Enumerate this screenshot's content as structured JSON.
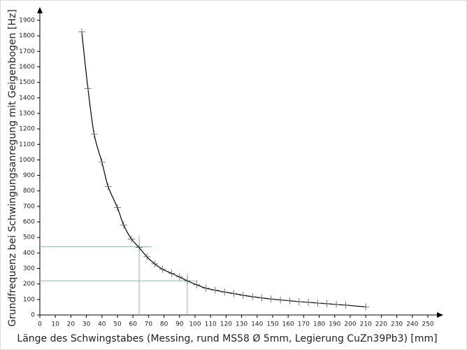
{
  "chart_data": {
    "type": "line",
    "xlabel": "Länge des Schwingstabes (Messing, rund MS58 Ø 5mm, Legierung CuZn39Pb3) [mm]",
    "ylabel": "Grundfrequenz bei Schwingungsanregung mit Geigenbogen [Hz]",
    "x": [
      27,
      31,
      35,
      40,
      44,
      50,
      54,
      59,
      64,
      69,
      74,
      79,
      85,
      90,
      95,
      101,
      107,
      113,
      119,
      125,
      131,
      137,
      143,
      149,
      155,
      161,
      167,
      173,
      179,
      185,
      191,
      197,
      210
    ],
    "values": [
      1825,
      1460,
      1165,
      985,
      828,
      692,
      580,
      490,
      435,
      375,
      330,
      295,
      268,
      245,
      220,
      195,
      173,
      160,
      148,
      138,
      127,
      118,
      110,
      103,
      97,
      92,
      86,
      82,
      77,
      73,
      68,
      64,
      52
    ],
    "color": "#000000",
    "marker": "cross",
    "guides": [
      {
        "x": [
          0,
          72
        ],
        "y": [
          440,
          440
        ]
      },
      {
        "x": [
          64,
          64
        ],
        "y": [
          0,
          515
        ]
      },
      {
        "x": [
          0,
          102
        ],
        "y": [
          220,
          220
        ]
      },
      {
        "x": [
          95,
          95
        ],
        "y": [
          0,
          270
        ]
      }
    ],
    "guide_color": "#8fb8a0",
    "xlim": [
      0,
      250
    ],
    "ylim": [
      0,
      1900
    ],
    "xticks": [
      0,
      10,
      20,
      30,
      40,
      50,
      60,
      70,
      80,
      90,
      100,
      110,
      120,
      130,
      140,
      150,
      160,
      170,
      180,
      190,
      200,
      210,
      220,
      230,
      240,
      250
    ],
    "yticks": [
      0,
      100,
      200,
      300,
      400,
      500,
      600,
      700,
      800,
      900,
      1000,
      1100,
      1200,
      1300,
      1400,
      1500,
      1600,
      1700,
      1800,
      1900
    ]
  }
}
